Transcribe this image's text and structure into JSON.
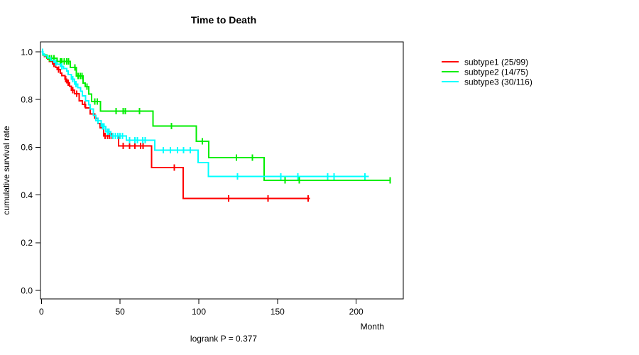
{
  "figure": {
    "title": "Time to Death",
    "footnote": "logrank P = 0.377"
  },
  "chart_data": {
    "type": "line",
    "variant": "kaplan-meier-survival-step",
    "title": "Time to Death",
    "xlabel": "Month",
    "ylabel": "cumulative survival rate",
    "footnote": "logrank P = 0.377",
    "xlim": [
      0,
      230
    ],
    "ylim": [
      0,
      1
    ],
    "x_ticks": [
      0,
      50,
      100,
      150,
      200
    ],
    "x_tick_labels": [
      "0",
      "50",
      "100",
      "150",
      "200"
    ],
    "y_ticks": [
      0,
      0.2,
      0.4,
      0.6,
      0.8,
      1
    ],
    "y_tick_labels": [
      "0.0",
      "0.2",
      "0.4",
      "0.6",
      "0.8",
      "1.0"
    ],
    "grid": false,
    "legend_position": "right-outside",
    "series": [
      {
        "name": "subtype1",
        "legend_label": "subtype1 (25/99)",
        "events": 25,
        "n": 99,
        "color": "#FF0000",
        "steps": [
          [
            0,
            1.0
          ],
          [
            1,
            0.99
          ],
          [
            2,
            0.98
          ],
          [
            4,
            0.97
          ],
          [
            5,
            0.96
          ],
          [
            7,
            0.95
          ],
          [
            9,
            0.935
          ],
          [
            10,
            0.925
          ],
          [
            12,
            0.91
          ],
          [
            13,
            0.9
          ],
          [
            15,
            0.885
          ],
          [
            16,
            0.87
          ],
          [
            18,
            0.855
          ],
          [
            19,
            0.84
          ],
          [
            21,
            0.825
          ],
          [
            24,
            0.795
          ],
          [
            26,
            0.78
          ],
          [
            28,
            0.765
          ],
          [
            31,
            0.74
          ],
          [
            34,
            0.722
          ],
          [
            36,
            0.7
          ],
          [
            37.2,
            0.682
          ],
          [
            39.6,
            0.648
          ],
          [
            49,
            0.605
          ],
          [
            70,
            0.515
          ],
          [
            90,
            0.386
          ]
        ],
        "end_month": 170.5,
        "censor_marks": [
          [
            8,
            0.95
          ],
          [
            11,
            0.925
          ],
          [
            15.5,
            0.885
          ],
          [
            17,
            0.87
          ],
          [
            20,
            0.84
          ],
          [
            22.5,
            0.825
          ],
          [
            27.5,
            0.78
          ],
          [
            40.5,
            0.648
          ],
          [
            42,
            0.648
          ],
          [
            43.5,
            0.648
          ],
          [
            45,
            0.648
          ],
          [
            47,
            0.648
          ],
          [
            52,
            0.605
          ],
          [
            56,
            0.605
          ],
          [
            59.5,
            0.605
          ],
          [
            63,
            0.605
          ],
          [
            64.5,
            0.605
          ],
          [
            84.5,
            0.515
          ],
          [
            119,
            0.386
          ],
          [
            144,
            0.386
          ],
          [
            169.5,
            0.386
          ]
        ]
      },
      {
        "name": "subtype2",
        "legend_label": "subtype2 (14/75)",
        "events": 14,
        "n": 75,
        "color": "#00EE00",
        "steps": [
          [
            0,
            1.0
          ],
          [
            1,
            0.987
          ],
          [
            3.5,
            0.973
          ],
          [
            10,
            0.96
          ],
          [
            18.4,
            0.934
          ],
          [
            22.3,
            0.899
          ],
          [
            26.4,
            0.869
          ],
          [
            27.9,
            0.854
          ],
          [
            30,
            0.823
          ],
          [
            32,
            0.792
          ],
          [
            37.6,
            0.752
          ],
          [
            71,
            0.689
          ],
          [
            98.5,
            0.625
          ],
          [
            106.3,
            0.556
          ],
          [
            141.4,
            0.461
          ]
        ],
        "end_month": 222,
        "censor_marks": [
          [
            5,
            0.973
          ],
          [
            6.5,
            0.973
          ],
          [
            8,
            0.973
          ],
          [
            12,
            0.96
          ],
          [
            13,
            0.96
          ],
          [
            14.5,
            0.96
          ],
          [
            16,
            0.96
          ],
          [
            17.2,
            0.96
          ],
          [
            21.4,
            0.934
          ],
          [
            23.4,
            0.899
          ],
          [
            24.6,
            0.899
          ],
          [
            25.7,
            0.899
          ],
          [
            29,
            0.854
          ],
          [
            34,
            0.792
          ],
          [
            35.5,
            0.792
          ],
          [
            47.4,
            0.752
          ],
          [
            51.9,
            0.752
          ],
          [
            53.4,
            0.752
          ],
          [
            62.4,
            0.752
          ],
          [
            82.7,
            0.689
          ],
          [
            102.3,
            0.625
          ],
          [
            124,
            0.556
          ],
          [
            134,
            0.556
          ],
          [
            154.8,
            0.461
          ],
          [
            163.8,
            0.461
          ],
          [
            221.5,
            0.461
          ]
        ]
      },
      {
        "name": "subtype3",
        "legend_label": "subtype3 (30/116)",
        "events": 30,
        "n": 116,
        "color": "#00FFFF",
        "steps": [
          [
            0,
            1.0
          ],
          [
            1,
            0.991
          ],
          [
            2,
            0.983
          ],
          [
            4,
            0.974
          ],
          [
            6,
            0.965
          ],
          [
            8,
            0.956
          ],
          [
            10,
            0.948
          ],
          [
            12,
            0.939
          ],
          [
            14,
            0.93
          ],
          [
            16,
            0.92
          ],
          [
            17,
            0.905
          ],
          [
            19,
            0.885
          ],
          [
            21,
            0.865
          ],
          [
            23,
            0.85
          ],
          [
            25,
            0.835
          ],
          [
            26,
            0.815
          ],
          [
            28,
            0.795
          ],
          [
            30,
            0.778
          ],
          [
            31,
            0.76
          ],
          [
            33,
            0.734
          ],
          [
            34.6,
            0.712
          ],
          [
            38,
            0.688
          ],
          [
            41,
            0.665
          ],
          [
            44,
            0.648
          ],
          [
            54,
            0.629
          ],
          [
            72,
            0.588
          ],
          [
            99.5,
            0.536
          ],
          [
            106,
            0.478
          ]
        ],
        "end_month": 208,
        "censor_marks": [
          [
            0.7,
            1.0
          ],
          [
            9,
            0.956
          ],
          [
            13,
            0.939
          ],
          [
            20,
            0.885
          ],
          [
            22,
            0.865
          ],
          [
            36,
            0.712
          ],
          [
            38.8,
            0.688
          ],
          [
            39.8,
            0.688
          ],
          [
            42,
            0.665
          ],
          [
            43,
            0.665
          ],
          [
            45.5,
            0.648
          ],
          [
            47,
            0.648
          ],
          [
            48.5,
            0.648
          ],
          [
            50,
            0.648
          ],
          [
            51.5,
            0.648
          ],
          [
            56,
            0.629
          ],
          [
            59.4,
            0.629
          ],
          [
            61,
            0.629
          ],
          [
            64.4,
            0.629
          ],
          [
            66,
            0.629
          ],
          [
            77.4,
            0.588
          ],
          [
            81.9,
            0.588
          ],
          [
            86.4,
            0.588
          ],
          [
            90.2,
            0.588
          ],
          [
            94.7,
            0.588
          ],
          [
            124.5,
            0.478
          ],
          [
            152,
            0.478
          ],
          [
            163,
            0.478
          ],
          [
            181.9,
            0.478
          ],
          [
            186,
            0.478
          ],
          [
            205.6,
            0.478
          ]
        ]
      }
    ]
  }
}
